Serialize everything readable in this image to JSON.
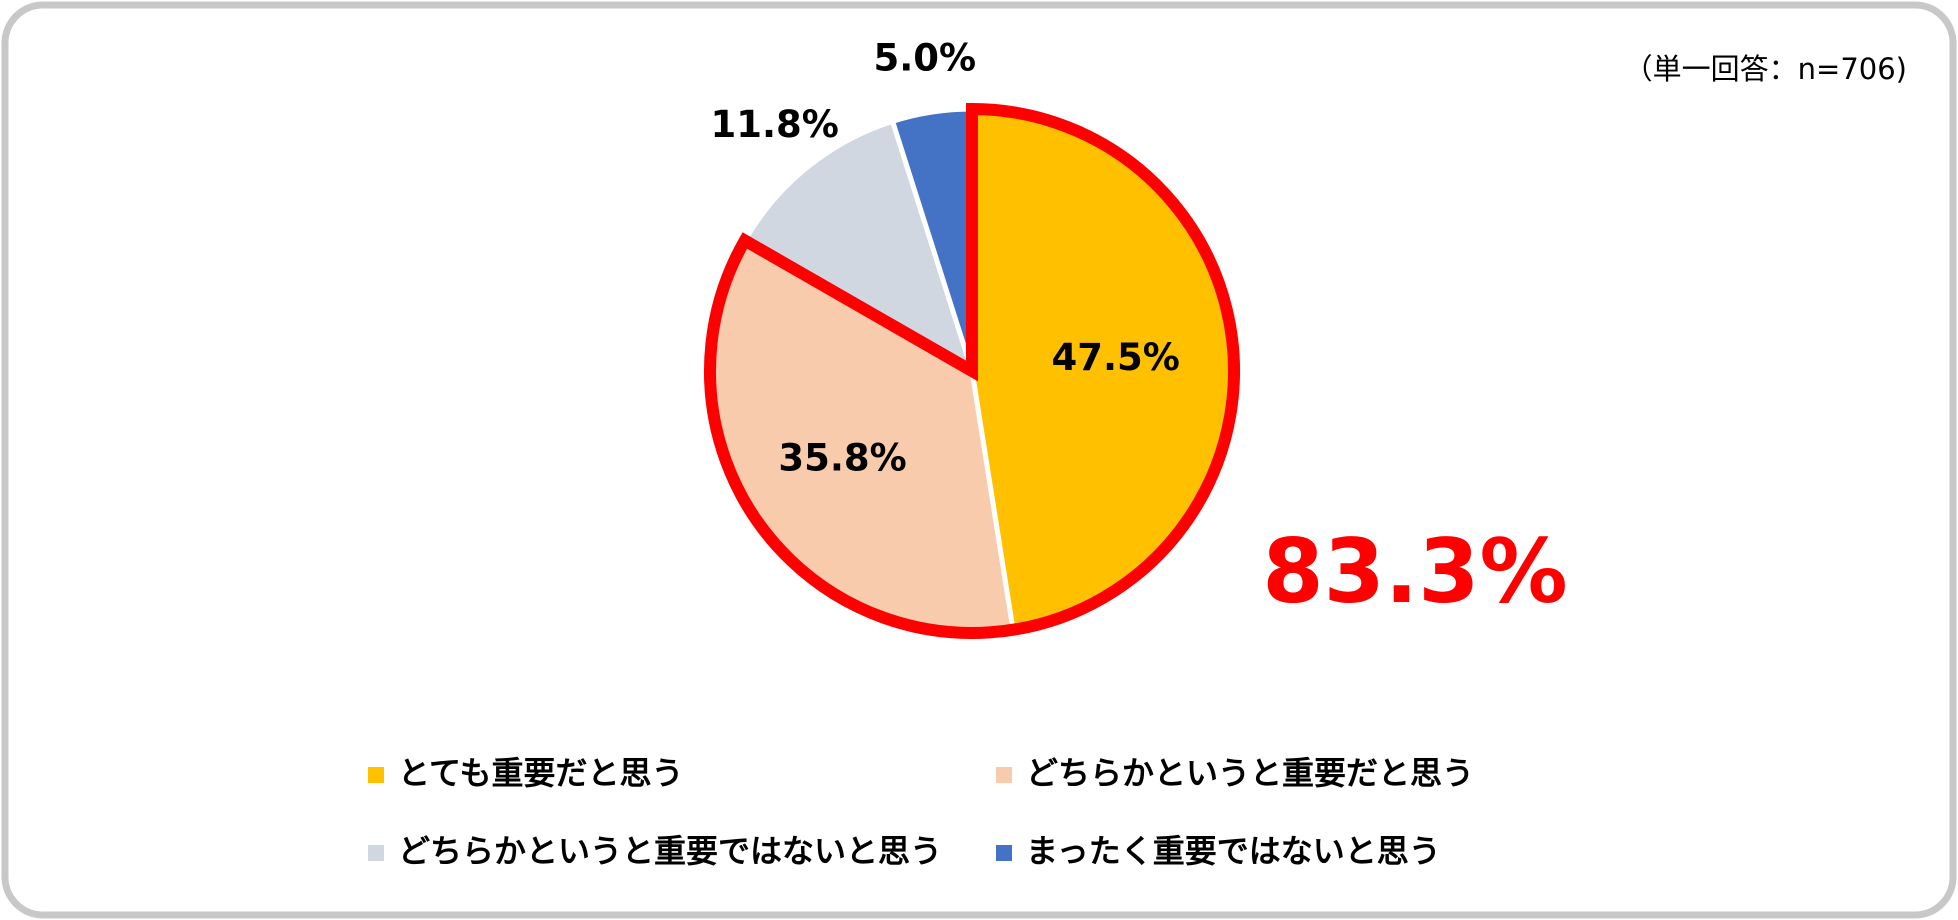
{
  "chart_data": {
    "type": "pie",
    "note": "（単一回答：n=706)",
    "annotation": "83.3%",
    "categories": [
      "とても重要だと思う",
      "どちらかというと重要だと思う",
      "どちらかというと重要ではないと思う",
      "まったく重要ではないと思う"
    ],
    "values": [
      47.5,
      35.8,
      11.8,
      5.0
    ],
    "value_labels": [
      "47.5%",
      "35.8%",
      "11.8%",
      "5.0%"
    ],
    "colors": [
      "#FFC000",
      "#F8CBAD",
      "#D0D7E1",
      "#4472C4"
    ],
    "highlight_color": "#FF0000"
  }
}
